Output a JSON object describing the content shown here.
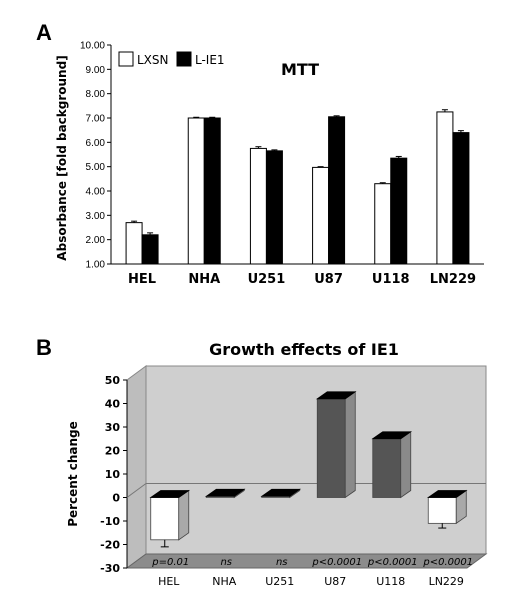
{
  "panels": {
    "a_label": "A",
    "b_label": "B"
  },
  "chart_data": [
    {
      "type": "bar",
      "title": "MTT",
      "xlabel": "",
      "ylabel": "Absorbance [fold background]",
      "ylim": [
        1.0,
        10.0
      ],
      "yticks": [
        "1.00",
        "2.00",
        "3.00",
        "4.00",
        "5.00",
        "6.00",
        "7.00",
        "8.00",
        "9.00",
        "10.00"
      ],
      "legend_position": "top-left",
      "grid": false,
      "categories": [
        "HEL",
        "NHA",
        "U251",
        "U87",
        "U118",
        "LN229"
      ],
      "series": [
        {
          "name": "LXSN",
          "color": "#ffffff",
          "values": [
            2.7,
            7.0,
            5.75,
            4.97,
            4.3,
            7.25
          ],
          "errors": [
            0.06,
            0.03,
            0.07,
            0.03,
            0.04,
            0.09
          ]
        },
        {
          "name": "L-IE1",
          "color": "#000000",
          "values": [
            2.2,
            7.0,
            5.65,
            7.05,
            5.35,
            6.4
          ],
          "errors": [
            0.08,
            0.03,
            0.04,
            0.04,
            0.07,
            0.08
          ]
        }
      ]
    },
    {
      "type": "bar",
      "title": "Growth effects of IE1",
      "xlabel": "",
      "ylabel": "Percent change",
      "ylim": [
        -30,
        50
      ],
      "yticks": [
        "-30",
        "-20",
        "-10",
        "0",
        "10",
        "20",
        "30",
        "40",
        "50"
      ],
      "grid": false,
      "style": "3d",
      "categories": [
        "HEL",
        "NHA",
        "U251",
        "U87",
        "U118",
        "LN229"
      ],
      "values": [
        -18,
        0.5,
        0.5,
        42,
        25,
        -11
      ],
      "errors": [
        3,
        0.8,
        1.5,
        1.5,
        2.5,
        2
      ],
      "colors": [
        "#ffffff",
        "#ffffff",
        "#ffffff",
        "#555555",
        "#555555",
        "#ffffff"
      ],
      "annotations": [
        "p=0.01",
        "ns",
        "ns",
        "p<0.0001",
        "p<0.0001",
        "p<0.0001"
      ]
    }
  ]
}
